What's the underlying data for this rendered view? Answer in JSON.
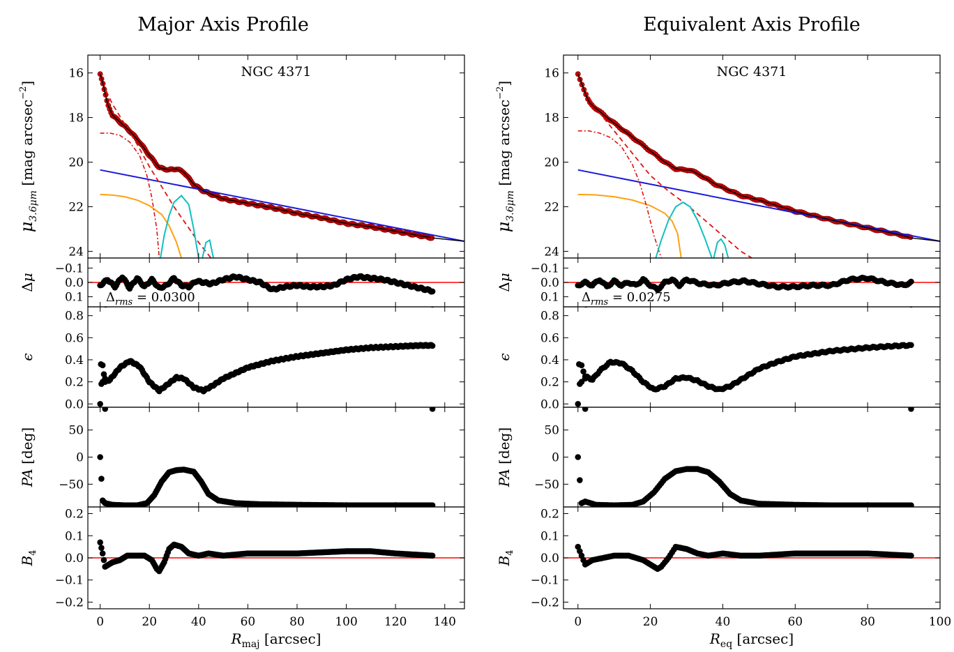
{
  "figure": {
    "columns": [
      {
        "title": "Major Axis Profile",
        "galaxy": "NGC 4371",
        "xlabel": "R_maj [arcsec]",
        "xlabel_main": "R",
        "xlabel_sub": "maj",
        "xlabel_unit": " [arcsec]",
        "xlim": [
          -5,
          148
        ],
        "xticks": [
          0,
          20,
          40,
          60,
          80,
          100,
          120,
          140
        ],
        "rmax": 135,
        "rms_text": "Δ_rms = 0.0300",
        "rms_value": "0.0300"
      },
      {
        "title": "Equivalent Axis Profile",
        "galaxy": "NGC 4371",
        "xlabel": "R_eq [arcsec]",
        "xlabel_main": "R",
        "xlabel_sub": "eq",
        "xlabel_unit": " [arcsec]",
        "xlim": [
          -4,
          100
        ],
        "xticks": [
          0,
          20,
          40,
          60,
          80,
          100
        ],
        "rmax": 92,
        "rms_text": "Δ_rms = 0.0275",
        "rms_value": "0.0275"
      }
    ],
    "panels": [
      {
        "key": "mu",
        "ylabel": "μ_3.6μm [mag arcsec^-2]",
        "ylim": [
          24.3,
          15.2
        ],
        "yticks": [
          16,
          18,
          20,
          22,
          24
        ]
      },
      {
        "key": "dmu",
        "ylabel": "Δμ",
        "ylim": [
          0.17,
          -0.17
        ],
        "yticks": [
          -0.1,
          0.0,
          0.1
        ],
        "yticklabels": [
          "−0.1",
          "0.0",
          "0.1"
        ]
      },
      {
        "key": "eps",
        "ylabel": "ε",
        "ylim": [
          -0.03,
          0.88
        ],
        "yticks": [
          0.0,
          0.2,
          0.4,
          0.6,
          0.8
        ],
        "yticklabels": [
          "0.0",
          "0.2",
          "0.4",
          "0.6",
          "0.8"
        ]
      },
      {
        "key": "pa",
        "ylabel": "PA [deg]",
        "ylim": [
          -92,
          92
        ],
        "yticks": [
          -50,
          0,
          50
        ],
        "yticklabels": [
          "−50",
          "0",
          "50"
        ]
      },
      {
        "key": "b4",
        "ylabel": "B4",
        "ylim": [
          -0.23,
          0.23
        ],
        "yticks": [
          -0.2,
          -0.1,
          0.0,
          0.1,
          0.2
        ],
        "yticklabels": [
          "−0.2",
          "−0.1",
          "0.0",
          "0.1",
          "0.2"
        ]
      }
    ],
    "colors": {
      "data": "#cc0000",
      "model": "#000000",
      "disk": "#1a1adb",
      "bulge": "#e01010",
      "bar": "#ffa010",
      "ring": "#10c0c0",
      "zero_line": "#ff0000",
      "points": "#000000"
    }
  },
  "chart_data": [
    {
      "type": "scatter",
      "title": "Major Axis Profile",
      "subtitle": "NGC 4371",
      "xlabel": "R_maj [arcsec]",
      "xlim": [
        -5,
        148
      ],
      "panels": {
        "mu": {
          "ylabel": "μ_3.6μm [mag arcsec^-2]",
          "ylim": [
            24.3,
            15.2
          ],
          "data_points": {
            "x": [
              0,
              1,
              2,
              3,
              5,
              8,
              12,
              16,
              20,
              24,
              28,
              31,
              34,
              38,
              42,
              50,
              60,
              70,
              80,
              90,
              100,
              110,
              120,
              130,
              135
            ],
            "y": [
              16.05,
              16.4,
              16.9,
              17.4,
              17.9,
              18.2,
              18.6,
              19.1,
              19.7,
              20.25,
              20.35,
              20.3,
              20.45,
              21.0,
              21.3,
              21.65,
              21.85,
              22.05,
              22.3,
              22.5,
              22.75,
              22.9,
              23.1,
              23.3,
              23.4
            ]
          },
          "disk": {
            "x": [
              0,
              148
            ],
            "y": [
              20.35,
              23.55
            ]
          },
          "bulge": {
            "x": [
              0,
              2,
              5,
              10,
              15,
              20,
              25,
              30,
              35,
              40,
              45
            ],
            "y": [
              16.1,
              16.7,
              17.4,
              18.3,
              19.2,
              20.2,
              21.1,
              22.0,
              22.8,
              23.6,
              24.3
            ]
          },
          "bar_component": {
            "x": [
              0,
              5,
              10,
              15,
              20,
              25,
              28,
              31,
              33
            ],
            "y": [
              21.45,
              21.48,
              21.55,
              21.7,
              21.95,
              22.35,
              22.85,
              23.6,
              24.3
            ]
          },
          "inner_component": {
            "x": [
              0,
              4,
              8,
              12,
              16,
              19,
              21,
              23,
              24
            ],
            "y": [
              18.7,
              18.7,
              18.8,
              19.1,
              19.7,
              20.6,
              21.6,
              23.0,
              24.3
            ]
          },
          "ring_1": {
            "x": [
              24.5,
              26,
              28,
              30,
              33,
              36,
              38,
              40
            ],
            "y": [
              24.3,
              23.3,
              22.4,
              21.8,
              21.5,
              21.9,
              23.0,
              24.3
            ]
          },
          "ring_2": {
            "x": [
              41.5,
              43,
              44.5,
              46
            ],
            "y": [
              24.3,
              23.6,
              23.5,
              24.3
            ]
          }
        },
        "dmu": {
          "ylabel": "Δμ",
          "ylim": [
            0.17,
            -0.17
          ],
          "annotation": "Δ_rms = 0.0300",
          "data_points": {
            "x": [
              0,
              3,
              6,
              9,
              12,
              15,
              18,
              21,
              24,
              27,
              30,
              33,
              36,
              39,
              45,
              50,
              55,
              60,
              65,
              70,
              75,
              80,
              85,
              90,
              95,
              100,
              105,
              110,
              115,
              120,
              125,
              130,
              135
            ],
            "y": [
              0.02,
              -0.02,
              0.03,
              -0.04,
              0.04,
              -0.03,
              0.03,
              -0.02,
              0.04,
              0.02,
              -0.03,
              0.02,
              0.03,
              -0.01,
              0.01,
              -0.02,
              -0.04,
              -0.02,
              0.0,
              0.05,
              0.03,
              0.02,
              0.03,
              0.03,
              0.02,
              -0.02,
              -0.04,
              -0.03,
              -0.02,
              0.0,
              0.02,
              0.04,
              0.06
            ]
          }
        },
        "eps": {
          "ylabel": "ε",
          "ylim": [
            -0.03,
            0.88
          ],
          "data_points": {
            "x": [
              0,
              1,
              2,
              4,
              8,
              12,
              16,
              20,
              24,
              27,
              31,
              34,
              38,
              42,
              46,
              50,
              60,
              70,
              80,
              90,
              100,
              110,
              120,
              130,
              135
            ],
            "y": [
              0.0,
              0.35,
              0.2,
              0.22,
              0.33,
              0.39,
              0.34,
              0.2,
              0.12,
              0.17,
              0.24,
              0.23,
              0.15,
              0.12,
              0.17,
              0.23,
              0.33,
              0.39,
              0.43,
              0.46,
              0.49,
              0.51,
              0.52,
              0.53,
              0.53
            ]
          }
        },
        "pa": {
          "ylabel": "PA [deg]",
          "ylim": [
            -92,
            92
          ],
          "data_points": {
            "x": [
              0,
              1,
              2,
              5,
              10,
              15,
              19,
              22,
              25,
              28,
              31,
              34,
              38,
              41,
              44,
              48,
              55,
              65,
              80,
              100,
              120,
              135
            ],
            "y": [
              0,
              -80,
              -85,
              -88,
              -89,
              -89,
              -85,
              -70,
              -45,
              -28,
              -24,
              -23,
              -27,
              -45,
              -68,
              -80,
              -85,
              -87,
              -88,
              -89,
              -89,
              -89
            ]
          }
        },
        "b4": {
          "ylabel": "B4",
          "ylim": [
            -0.23,
            0.23
          ],
          "data_points": {
            "x": [
              0,
              1,
              2,
              5,
              8,
              11,
              15,
              18,
              21,
              23,
              24,
              26,
              28,
              30,
              33,
              36,
              40,
              44,
              50,
              60,
              80,
              100,
              110,
              120,
              135
            ],
            "y": [
              0.07,
              0.02,
              -0.04,
              -0.02,
              -0.01,
              0.01,
              0.01,
              0.01,
              -0.01,
              -0.05,
              -0.06,
              -0.02,
              0.04,
              0.06,
              0.05,
              0.02,
              0.01,
              0.02,
              0.01,
              0.02,
              0.02,
              0.03,
              0.03,
              0.02,
              0.01
            ]
          }
        }
      }
    },
    {
      "type": "scatter",
      "title": "Equivalent Axis Profile",
      "subtitle": "NGC 4371",
      "xlabel": "R_eq [arcsec]",
      "xlim": [
        -4,
        100
      ],
      "panels": {
        "mu": {
          "ylabel": "μ_3.6μm [mag arcsec^-2]",
          "ylim": [
            24.3,
            15.2
          ],
          "data_points": {
            "x": [
              0,
              1,
              2,
              3,
              5,
              8,
              12,
              16,
              20,
              24,
              27,
              29,
              31,
              34,
              38,
              45,
              50,
              55,
              60,
              70,
              80,
              90,
              92
            ],
            "y": [
              16.05,
              16.45,
              16.9,
              17.3,
              17.6,
              18.0,
              18.5,
              19.0,
              19.5,
              20.0,
              20.3,
              20.35,
              20.35,
              20.6,
              21.0,
              21.5,
              21.7,
              21.95,
              22.2,
              22.6,
              22.95,
              23.3,
              23.4
            ]
          },
          "disk": {
            "x": [
              0,
              100
            ],
            "y": [
              20.35,
              23.55
            ]
          },
          "bulge": {
            "x": [
              0,
              2,
              5,
              10,
              15,
              20,
              25,
              30,
              35,
              40,
              45,
              48
            ],
            "y": [
              16.1,
              16.8,
              17.6,
              18.6,
              19.6,
              20.6,
              21.3,
              21.9,
              22.6,
              23.3,
              24.0,
              24.3
            ]
          },
          "bar_component": {
            "x": [
              0,
              5,
              10,
              15,
              20,
              24,
              26,
              27.5,
              28.5
            ],
            "y": [
              21.45,
              21.47,
              21.55,
              21.7,
              21.95,
              22.3,
              22.65,
              23.2,
              24.3
            ]
          },
          "inner_component": {
            "x": [
              0,
              3,
              6,
              9,
              12,
              15,
              17,
              19,
              21,
              23
            ],
            "y": [
              18.6,
              18.6,
              18.7,
              18.9,
              19.3,
              20.1,
              20.9,
              22.0,
              23.3,
              24.3
            ]
          },
          "ring_1": {
            "x": [
              21.5,
              23,
              25,
              27,
              29,
              31,
              33,
              35,
              37
            ],
            "y": [
              24.3,
              23.5,
              22.6,
              22.0,
              21.8,
              22.0,
              22.6,
              23.4,
              24.3
            ]
          },
          "ring_2": {
            "x": [
              37.5,
              38.5,
              39.5,
              40.5,
              41.5
            ],
            "y": [
              24.3,
              23.6,
              23.45,
              23.7,
              24.3
            ]
          }
        },
        "dmu": {
          "ylabel": "Δμ",
          "ylim": [
            0.17,
            -0.17
          ],
          "annotation": "Δ_rms = 0.0275",
          "data_points": {
            "x": [
              0,
              2,
              4,
              6,
              8,
              10,
              12,
              14,
              16,
              18,
              20,
              22,
              24,
              26,
              28,
              30,
              34,
              38,
              42,
              46,
              50,
              55,
              60,
              65,
              70,
              75,
              80,
              85,
              90,
              92
            ],
            "y": [
              0.02,
              0.0,
              0.02,
              -0.02,
              0.03,
              -0.01,
              0.02,
              0.0,
              0.02,
              -0.02,
              0.02,
              0.05,
              0.0,
              -0.02,
              0.02,
              -0.02,
              0.01,
              0.02,
              0.0,
              -0.01,
              0.01,
              0.03,
              0.03,
              0.02,
              0.02,
              -0.02,
              -0.03,
              0.0,
              0.02,
              0.0
            ]
          }
        },
        "eps": {
          "ylabel": "ε",
          "ylim": [
            -0.03,
            0.88
          ],
          "data_points": {
            "x": [
              0,
              1,
              2,
              4,
              6,
              9,
              12,
              15,
              18,
              21,
              24,
              27,
              30,
              33,
              36,
              39,
              42,
              46,
              50,
              55,
              60,
              70,
              80,
              90,
              92
            ],
            "y": [
              0.0,
              0.35,
              0.25,
              0.22,
              0.3,
              0.38,
              0.37,
              0.3,
              0.2,
              0.13,
              0.16,
              0.23,
              0.24,
              0.21,
              0.16,
              0.13,
              0.16,
              0.24,
              0.32,
              0.38,
              0.43,
              0.48,
              0.51,
              0.53,
              0.53
            ]
          }
        },
        "pa": {
          "ylabel": "PA [deg]",
          "ylim": [
            -92,
            92
          ],
          "data_points": {
            "x": [
              0,
              1,
              2,
              5,
              10,
              15,
              18,
              21,
              24,
              27,
              30,
              33,
              36,
              39,
              42,
              45,
              50,
              60,
              70,
              80,
              92
            ],
            "y": [
              0,
              -85,
              -82,
              -88,
              -89,
              -88,
              -82,
              -65,
              -40,
              -26,
              -22,
              -22,
              -28,
              -45,
              -68,
              -80,
              -86,
              -88,
              -89,
              -89,
              -89
            ]
          }
        },
        "b4": {
          "ylabel": "B4",
          "ylim": [
            -0.23,
            0.23
          ],
          "data_points": {
            "x": [
              0,
              1,
              2,
              4,
              7,
              10,
              14,
              18,
              20,
              22,
              23,
              25,
              27,
              30,
              33,
              36,
              40,
              45,
              50,
              60,
              70,
              80,
              92
            ],
            "y": [
              0.05,
              0.01,
              -0.03,
              -0.01,
              0.0,
              0.01,
              0.01,
              -0.01,
              -0.03,
              -0.05,
              -0.04,
              0.0,
              0.05,
              0.04,
              0.02,
              0.01,
              0.02,
              0.01,
              0.01,
              0.02,
              0.02,
              0.02,
              0.01
            ]
          }
        }
      }
    }
  ]
}
